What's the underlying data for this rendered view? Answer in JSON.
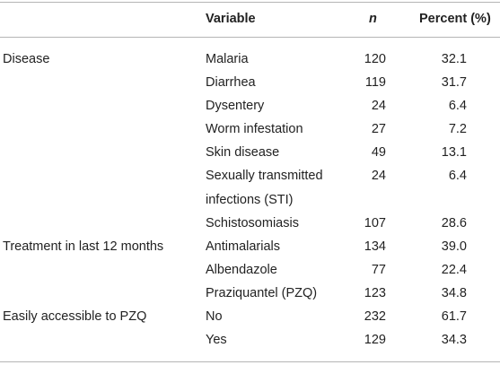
{
  "table": {
    "headers": {
      "group": "",
      "variable": "Variable",
      "n": "n",
      "percent": "Percent (%)"
    },
    "rows": [
      {
        "group": "Disease",
        "variable": "Malaria",
        "n": "120",
        "percent": "32.1"
      },
      {
        "group": "",
        "variable": "Diarrhea",
        "n": "119",
        "percent": "31.7"
      },
      {
        "group": "",
        "variable": "Dysentery",
        "n": "24",
        "percent": "6.4"
      },
      {
        "group": "",
        "variable": "Worm infestation",
        "n": "27",
        "percent": "7.2"
      },
      {
        "group": "",
        "variable": "Skin disease",
        "n": "49",
        "percent": "13.1"
      },
      {
        "group": "",
        "variable_line1": "Sexually transmitted",
        "variable_line2": "infections (STI)",
        "n": "24",
        "percent": "6.4"
      },
      {
        "group": "",
        "variable": "Schistosomiasis",
        "n": "107",
        "percent": "28.6"
      },
      {
        "group": "Treatment in last 12 months",
        "variable": "Antimalarials",
        "n": "134",
        "percent": "39.0"
      },
      {
        "group": "",
        "variable": "Albendazole",
        "n": "77",
        "percent": "22.4"
      },
      {
        "group": "",
        "variable": "Praziquantel (PZQ)",
        "n": "123",
        "percent": "34.8"
      },
      {
        "group": "Easily accessible to PZQ",
        "variable": "No",
        "n": "232",
        "percent": "61.7"
      },
      {
        "group": "",
        "variable": "Yes",
        "n": "129",
        "percent": "34.3"
      }
    ]
  },
  "colors": {
    "text": "#222222",
    "rule": "#b5b5b5",
    "background": "#ffffff"
  }
}
